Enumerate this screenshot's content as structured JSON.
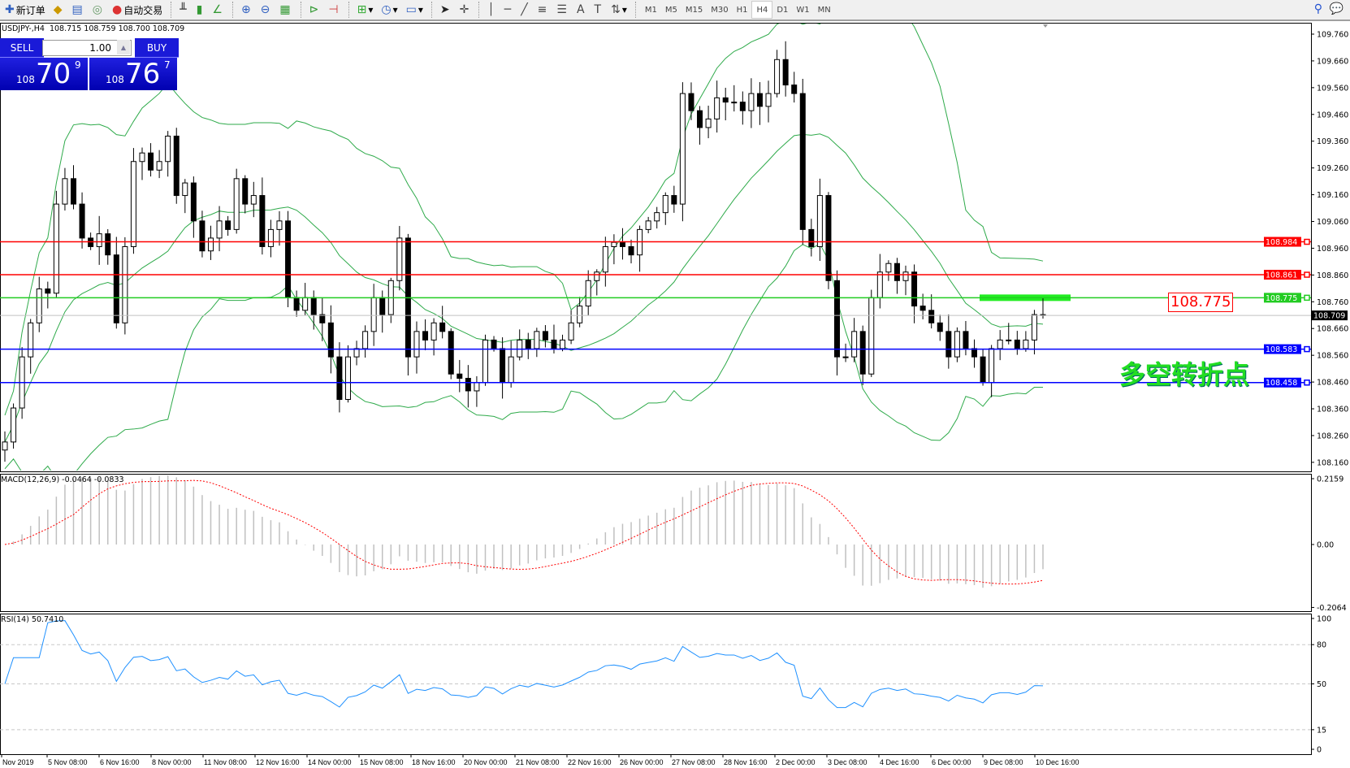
{
  "toolbar": {
    "new_order": "新订单",
    "auto_trading": "自动交易",
    "timeframes": [
      "M1",
      "M5",
      "M15",
      "M30",
      "H1",
      "H4",
      "D1",
      "W1",
      "MN"
    ],
    "active_timeframe": "H4"
  },
  "chart": {
    "header": "USDJPY-,H4  108.715 108.759 108.700 108.709",
    "symbol": "USDJPY-",
    "period": "H4"
  },
  "one_click": {
    "sell": "SELL",
    "buy": "BUY",
    "lot": "1.00",
    "sell_small": "108",
    "sell_big": "70",
    "sell_pip": "9",
    "buy_small": "108",
    "buy_big": "76",
    "buy_pip": "7"
  },
  "indicators": {
    "macd": "MACD(12,26,9) -0.0464 -0.0833",
    "rsi": "RSI(14) 50.7410"
  },
  "annotation": {
    "text": "多空转折点",
    "level_label": "108.775"
  },
  "colors": {
    "bull": "#ffffff",
    "bear": "#000000",
    "bands": "#2eaa4a",
    "resistance": "#ff0000",
    "pivot": "#22cc22",
    "support": "#0000ff",
    "rsi": "#1e90ff",
    "macd_signal": "#ff0000",
    "macd_hist": "#c0c0c0"
  },
  "price_axis": [
    "109.760",
    "109.660",
    "109.560",
    "109.460",
    "109.360",
    "109.260",
    "109.160",
    "109.060",
    "108.960",
    "108.860",
    "108.760",
    "108.660",
    "108.560",
    "108.460",
    "108.360",
    "108.260",
    "108.160"
  ],
  "hlines": [
    {
      "price": 108.984,
      "label": "108.984",
      "color": "#ff0000"
    },
    {
      "price": 108.861,
      "label": "108.861",
      "color": "#ff0000"
    },
    {
      "price": 108.775,
      "label": "108.775",
      "color": "#22cc22"
    },
    {
      "price": 108.583,
      "label": "108.583",
      "color": "#0000ff"
    },
    {
      "price": 108.458,
      "label": "108.458",
      "color": "#0000ff"
    }
  ],
  "bid": {
    "price": 108.709,
    "label": "108.709"
  },
  "macd_axis": [
    "0.2159",
    "0.00",
    "-0.2064"
  ],
  "rsi_axis": [
    "100",
    "80",
    "50",
    "15",
    "0"
  ],
  "time_axis": [
    "Nov 2019",
    "5 Nov 08:00",
    "6 Nov 16:00",
    "8 Nov 00:00",
    "11 Nov 08:00",
    "12 Nov 16:00",
    "14 Nov 00:00",
    "15 Nov 08:00",
    "18 Nov 16:00",
    "20 Nov 00:00",
    "21 Nov 08:00",
    "22 Nov 16:00",
    "26 Nov 00:00",
    "27 Nov 08:00",
    "28 Nov 16:00",
    "2 Dec 00:00",
    "3 Dec 08:00",
    "4 Dec 16:00",
    "6 Dec 00:00",
    "9 Dec 08:00",
    "10 Dec 16:00"
  ],
  "chart_data": {
    "type": "candlestick",
    "closes": [
      108.236,
      108.363,
      108.554,
      108.681,
      108.808,
      108.792,
      109.125,
      109.22,
      109.125,
      108.998,
      108.966,
      109.014,
      108.935,
      108.681,
      108.966,
      109.284,
      109.316,
      109.252,
      109.284,
      109.379,
      109.157,
      109.204,
      109.062,
      108.95,
      108.998,
      109.062,
      109.03,
      109.22,
      109.125,
      109.157,
      108.966,
      109.03,
      109.062,
      108.776,
      108.728,
      108.776,
      108.712,
      108.681,
      108.554,
      108.395,
      108.554,
      108.585,
      108.649,
      108.776,
      108.712,
      108.839,
      108.998,
      108.554,
      108.649,
      108.617,
      108.681,
      108.649,
      108.49,
      108.474,
      108.427,
      108.458,
      108.617,
      108.585,
      108.458,
      108.554,
      108.617,
      108.585,
      108.649,
      108.617,
      108.585,
      108.617,
      108.681,
      108.744,
      108.839,
      108.871,
      108.966,
      108.982,
      108.966,
      108.935,
      109.03,
      109.062,
      109.093,
      109.157,
      109.125,
      109.538,
      109.474,
      109.411,
      109.443,
      109.522,
      109.506,
      109.506,
      109.474,
      109.538,
      109.49,
      109.538,
      109.665,
      109.57,
      109.538,
      109.03,
      108.966,
      109.157,
      108.839,
      108.554,
      108.554,
      108.649,
      108.49,
      108.776,
      108.871,
      108.903,
      108.839,
      108.871,
      108.744,
      108.728,
      108.681,
      108.649,
      108.554,
      108.649,
      108.585,
      108.554,
      108.458,
      108.585,
      108.617,
      108.617,
      108.585,
      108.617,
      108.712,
      108.709
    ],
    "ylim": [
      108.13,
      109.8
    ]
  }
}
